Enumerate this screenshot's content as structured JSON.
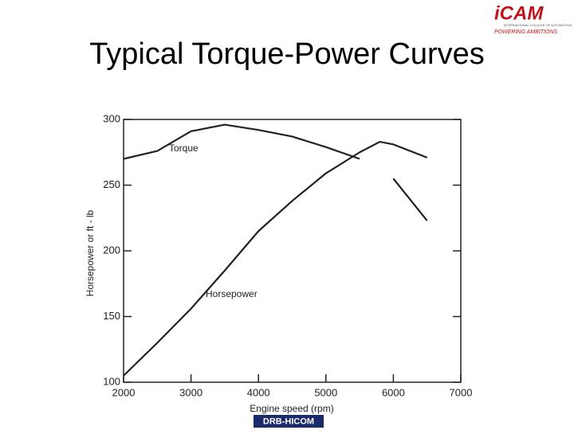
{
  "branding": {
    "logo": "iCAM",
    "subtitle": "INTERNATIONAL COLLEGE OF AUTOMOTIVE",
    "tagline": "POWERING AMBITIONS",
    "footer": "DRB-HICOM"
  },
  "chart_data": {
    "type": "line",
    "title": "Typical Torque-Power Curves",
    "x_label": "Engine speed (rpm)",
    "y_label": "Horsepower or ft - lb",
    "x": [
      2000,
      2500,
      3000,
      3500,
      4000,
      4500,
      5000,
      5500,
      5800,
      6000,
      6500
    ],
    "series": [
      {
        "name": "Torque",
        "color": "#222222",
        "values": [
          270,
          276,
          291,
          296,
          292,
          287,
          279,
          270,
          null,
          255,
          223
        ]
      },
      {
        "name": "Horsepower",
        "color": "#222222",
        "values": [
          105,
          130,
          156,
          185,
          215,
          238,
          259,
          275,
          283,
          281,
          271
        ]
      }
    ],
    "xlim": [
      2000,
      7000
    ],
    "xticks": [
      2000,
      3000,
      4000,
      5000,
      6000,
      7000
    ],
    "ylim": [
      100,
      300
    ],
    "yticks": [
      100,
      150,
      200,
      250,
      300
    ],
    "grid": false
  }
}
